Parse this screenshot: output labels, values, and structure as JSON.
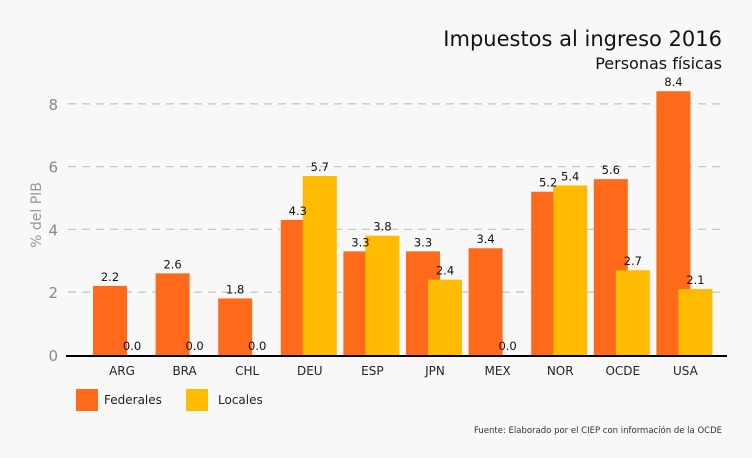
{
  "chart_data": {
    "type": "bar",
    "title": "Impuestos al ingreso  2016",
    "subtitle": "Personas físicas",
    "xlabel": "",
    "ylabel": "% del PIB",
    "ylim": [
      0,
      8.5
    ],
    "yticks": [
      0,
      2,
      4,
      6,
      8
    ],
    "grid": true,
    "categories": [
      "ARG",
      "BRA",
      "CHL",
      "DEU",
      "ESP",
      "JPN",
      "MEX",
      "NOR",
      "OCDE",
      "USA"
    ],
    "series": [
      {
        "name": "Federales",
        "color": "#ff6a1a",
        "values": [
          2.2,
          2.6,
          1.8,
          4.3,
          3.3,
          3.3,
          3.4,
          5.2,
          5.6,
          8.4
        ]
      },
      {
        "name": "Locales",
        "color": "#ffbb00",
        "values": [
          0.0,
          0.0,
          0.0,
          5.7,
          3.8,
          2.4,
          0.0,
          5.4,
          2.7,
          2.1
        ]
      }
    ],
    "legend_position": "bottom-left",
    "source": "Fuente: Elaborado por el CIEP con información de la OCDE"
  }
}
